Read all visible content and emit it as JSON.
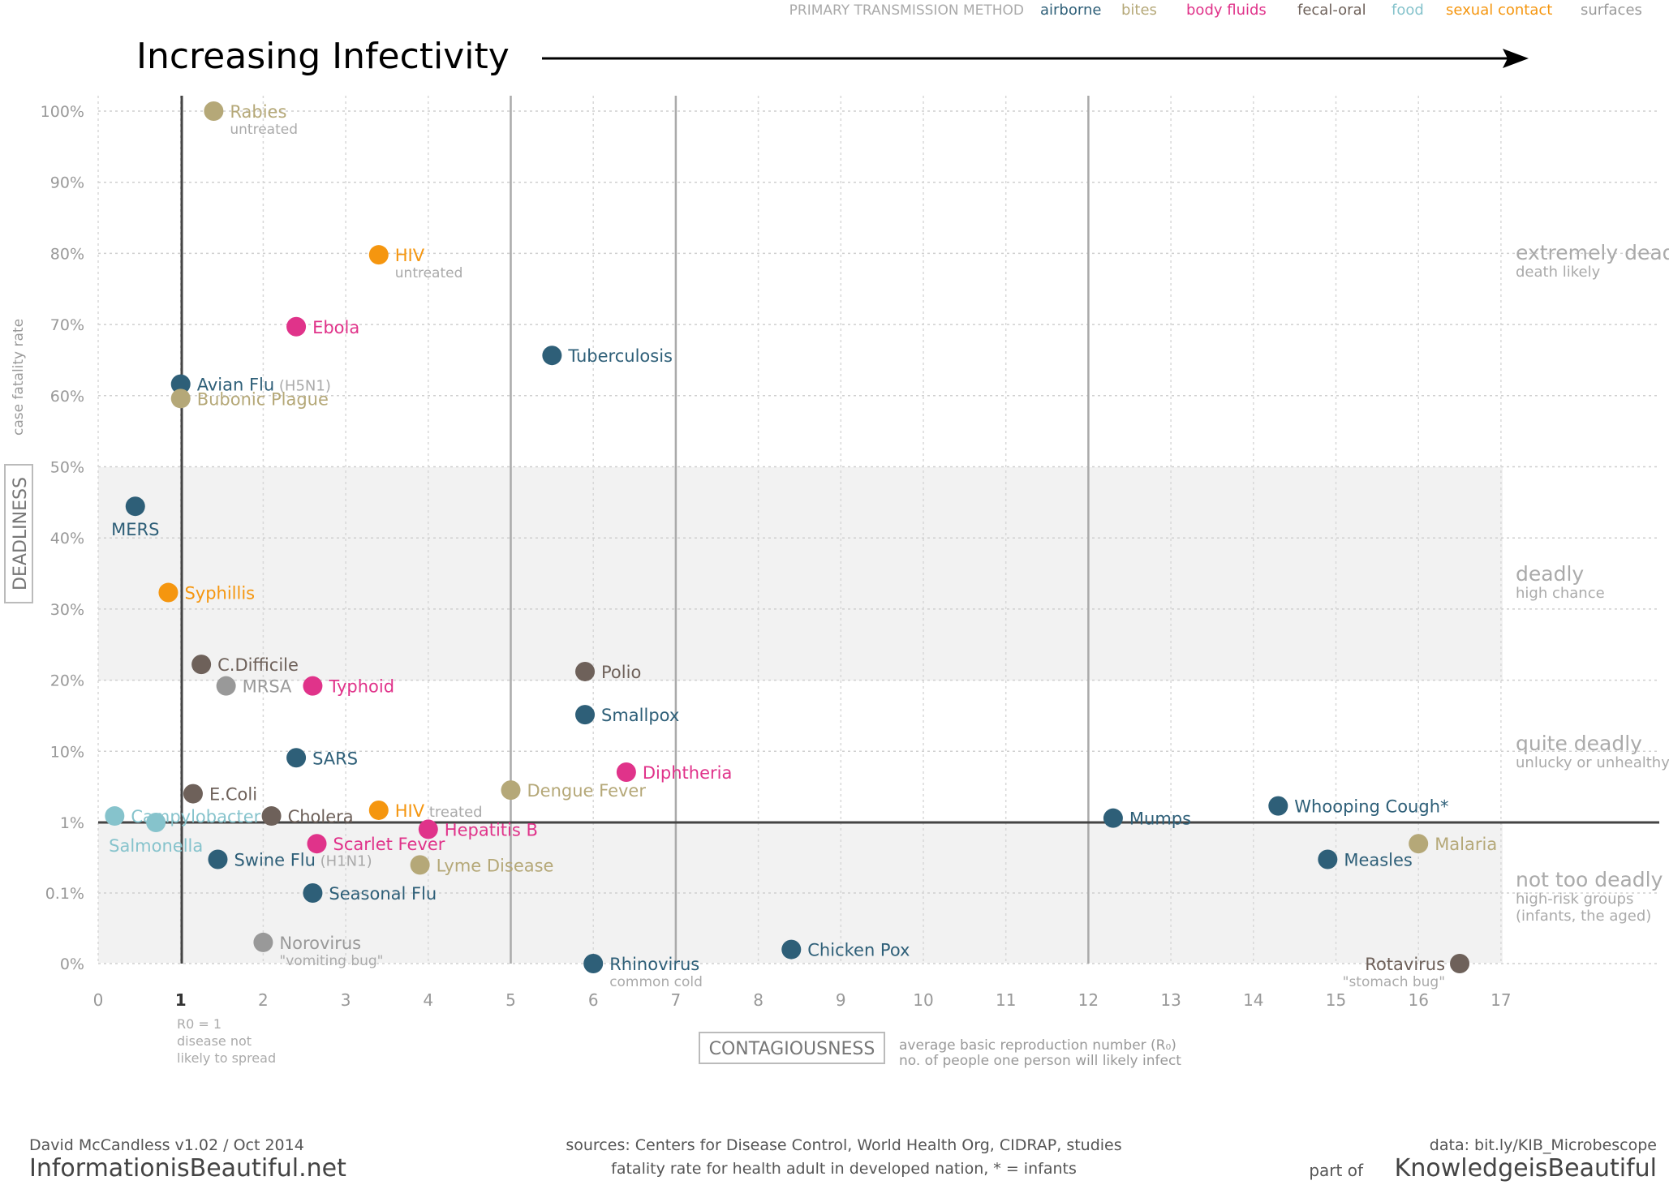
{
  "legend": {
    "title": "PRIMARY TRANSMISSION METHOD",
    "items": [
      {
        "label": "airborne",
        "color": "#2e5f78"
      },
      {
        "label": "bites",
        "color": "#b5a878"
      },
      {
        "label": "body fluids",
        "color": "#e0338a"
      },
      {
        "label": "fecal-oral",
        "color": "#6e615a"
      },
      {
        "label": "food",
        "color": "#86c3cc"
      },
      {
        "label": "sexual contact",
        "color": "#f5960f"
      },
      {
        "label": "surfaces",
        "color": "#999999"
      }
    ]
  },
  "headline": "Increasing Infectivity",
  "axes": {
    "x_label": "CONTAGIOUSNESS",
    "x_sub1": "average basic reproduction number (R₀)",
    "x_sub2": "no. of people one person will likely infect",
    "y_label": "DEADLINESS",
    "y_sub": "case fatality rate",
    "r0_note": [
      "R0 = 1",
      "disease not",
      "likely to spread"
    ]
  },
  "zones": [
    {
      "title": "extremely deadly",
      "sub": [
        "death likely"
      ]
    },
    {
      "title": "deadly",
      "sub": [
        "high chance"
      ]
    },
    {
      "title": "quite deadly",
      "sub": [
        "unlucky or unhealthy"
      ]
    },
    {
      "title": "not too deadly",
      "sub": [
        "high-risk groups",
        "(infants, the aged)"
      ]
    }
  ],
  "footer": {
    "author": "David McCandless v1.02 / Oct 2014",
    "site": "InformationisBeautiful.net",
    "sources1": "sources: Centers for Disease Control, World Health Org, CIDRAP, studies",
    "sources2": "fatality rate for health adult in developed nation, * = infants",
    "data": "data: bit.ly/KIB_Microbescope",
    "part_of": "part of",
    "brand": "KnowledgeisBeautiful"
  },
  "chart_data": {
    "type": "scatter",
    "xlim": [
      0,
      17
    ],
    "x_ticks": [
      "0",
      "1",
      "2",
      "3",
      "4",
      "5",
      "6",
      "7",
      "8",
      "9",
      "10",
      "11",
      "12",
      "13",
      "14",
      "15",
      "16",
      "17"
    ],
    "y_ticks": [
      "0%",
      "0.1%",
      "1%",
      "10%",
      "20%",
      "30%",
      "40%",
      "50%",
      "60%",
      "70%",
      "80%",
      "90%",
      "100%"
    ],
    "y_scale": "piecewise: 0%–1% log-like lower band, 1%–100% linear",
    "vertical_reference_lines": [
      1,
      5,
      7,
      12
    ],
    "points": [
      {
        "name": "Rabies",
        "sub": "untreated",
        "x": 1.4,
        "y": 100,
        "category": "bites"
      },
      {
        "name": "HIV",
        "sub": "untreated",
        "x": 3.4,
        "y": 80,
        "category": "sexual contact"
      },
      {
        "name": "Ebola",
        "x": 2.4,
        "y": 70,
        "category": "body fluids"
      },
      {
        "name": "Tuberculosis",
        "x": 5.5,
        "y": 66,
        "category": "airborne"
      },
      {
        "name": "Avian Flu",
        "note": "(H5N1)",
        "x": 1.0,
        "y": 62,
        "category": "airborne"
      },
      {
        "name": "Bubonic Plague",
        "x": 1.0,
        "y": 60,
        "category": "bites"
      },
      {
        "name": "MERS",
        "x": 0.45,
        "y": 45,
        "category": "airborne"
      },
      {
        "name": "Syphillis",
        "x": 0.85,
        "y": 33,
        "category": "sexual contact"
      },
      {
        "name": "C.Difficile",
        "x": 1.25,
        "y": 23,
        "category": "fecal-oral"
      },
      {
        "name": "Polio",
        "x": 5.9,
        "y": 22,
        "category": "fecal-oral"
      },
      {
        "name": "MRSA",
        "x": 1.55,
        "y": 20,
        "category": "surfaces"
      },
      {
        "name": "Typhoid",
        "x": 2.6,
        "y": 20,
        "category": "body fluids"
      },
      {
        "name": "Smallpox",
        "x": 5.9,
        "y": 16,
        "category": "airborne"
      },
      {
        "name": "SARS",
        "x": 2.4,
        "y": 10,
        "category": "airborne"
      },
      {
        "name": "Diphtheria",
        "x": 6.4,
        "y": 8,
        "category": "body fluids"
      },
      {
        "name": "Dengue Fever",
        "x": 5.0,
        "y": 5.5,
        "category": "bites"
      },
      {
        "name": "E.Coli",
        "x": 1.15,
        "y": 5,
        "category": "fecal-oral"
      },
      {
        "name": "HIV",
        "note": "treated",
        "x": 3.4,
        "y": 2.7,
        "category": "sexual contact"
      },
      {
        "name": "Whooping Cough*",
        "x": 14.3,
        "y": 3.3,
        "category": "airborne"
      },
      {
        "name": "Cholera",
        "x": 2.1,
        "y": 1.9,
        "category": "fecal-oral"
      },
      {
        "name": "Campylobacter",
        "x": 0.2,
        "y": 1.9,
        "category": "food"
      },
      {
        "name": "Mumps",
        "x": 12.3,
        "y": 1.6,
        "category": "airborne"
      },
      {
        "name": "Salmonella",
        "x": 0.7,
        "y": 1.0,
        "category": "food"
      },
      {
        "name": "Hepatitis B",
        "x": 4.0,
        "y": 0.8,
        "category": "body fluids"
      },
      {
        "name": "Scarlet Fever",
        "x": 2.65,
        "y": 0.5,
        "category": "body fluids"
      },
      {
        "name": "Malaria",
        "x": 16.0,
        "y": 0.5,
        "category": "bites"
      },
      {
        "name": "Swine Flu",
        "note": "(H1N1)",
        "x": 1.45,
        "y": 0.3,
        "category": "airborne"
      },
      {
        "name": "Lyme Disease",
        "x": 3.9,
        "y": 0.25,
        "category": "bites"
      },
      {
        "name": "Measles",
        "x": 14.9,
        "y": 0.3,
        "category": "airborne"
      },
      {
        "name": "Seasonal Flu",
        "x": 2.6,
        "y": 0.1,
        "category": "airborne"
      },
      {
        "name": "Norovirus",
        "sub": "\"vomiting bug\"",
        "x": 2.0,
        "y": 0.03,
        "category": "surfaces"
      },
      {
        "name": "Chicken Pox",
        "x": 8.4,
        "y": 0.02,
        "category": "airborne"
      },
      {
        "name": "Rhinovirus",
        "sub": "common cold",
        "x": 6.0,
        "y": 0.0,
        "category": "airborne"
      },
      {
        "name": "Rotavirus",
        "sub": "\"stomach bug\"",
        "x": 16.5,
        "y": 0.0,
        "category": "fecal-oral"
      }
    ]
  }
}
